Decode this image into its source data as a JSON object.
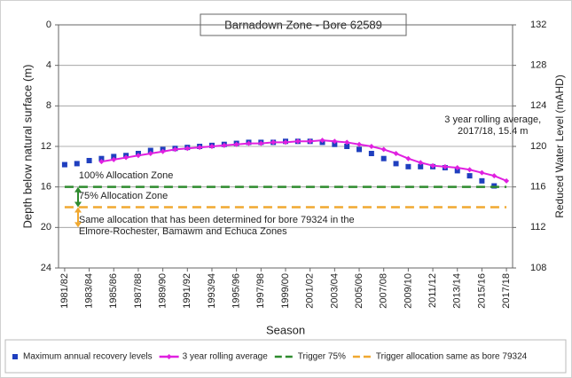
{
  "chart_data": {
    "type": "line",
    "title": "Barnadown Zone  - Bore 62589",
    "x_label": "Season",
    "y_label": "Depth below natural surface (m)",
    "y2_label": "Reduced Water Level (mAHD)",
    "categories": [
      "1981/82",
      null,
      "1983/84",
      null,
      "1985/86",
      null,
      "1987/88",
      null,
      "1989/90",
      null,
      "1991/92",
      null,
      "1993/94",
      null,
      "1995/96",
      null,
      "1997/98",
      null,
      "1999/00",
      null,
      "2001/02",
      null,
      "2003/04",
      null,
      "2005/06",
      null,
      "2007/08",
      null,
      "2009/10",
      null,
      "2011/12",
      null,
      "2013/14",
      null,
      "2015/16",
      null,
      "2017/18"
    ],
    "ylim": [
      0,
      24
    ],
    "y_inverted": true,
    "yticks": [
      0,
      4,
      8,
      12,
      16,
      20,
      24
    ],
    "y2lim": [
      108,
      132
    ],
    "y2ticks": [
      132,
      128,
      124,
      120,
      116,
      112,
      108
    ],
    "grid": true,
    "legend": "bottom",
    "series": [
      {
        "name": "Maximum annual recovery levels",
        "color": "#1f3fbf",
        "style": "markers",
        "values": [
          13.8,
          13.7,
          13.4,
          13.2,
          13.0,
          12.9,
          12.7,
          12.4,
          12.3,
          12.2,
          12.1,
          12.0,
          11.9,
          11.8,
          11.7,
          11.6,
          11.6,
          11.6,
          11.5,
          11.5,
          11.5,
          11.6,
          11.8,
          12.0,
          12.3,
          12.7,
          13.2,
          13.7,
          14.0,
          14.0,
          14.0,
          14.1,
          14.4,
          14.9,
          15.4,
          15.9,
          null
        ]
      },
      {
        "name": "3 year rolling average",
        "color": "#e020e0",
        "style": "line-markers",
        "values": [
          null,
          null,
          null,
          13.5,
          13.3,
          13.1,
          12.9,
          12.7,
          12.5,
          12.3,
          12.2,
          12.1,
          12.0,
          11.9,
          11.8,
          11.7,
          11.7,
          11.6,
          11.6,
          11.5,
          11.5,
          11.4,
          11.5,
          11.6,
          11.8,
          12.0,
          12.3,
          12.7,
          13.2,
          13.6,
          13.9,
          14.0,
          14.1,
          14.3,
          14.6,
          14.9,
          15.4
        ]
      },
      {
        "name": "Trigger 75%",
        "color": "#2e8b2e",
        "style": "dashed",
        "values": [
          16,
          16,
          16,
          16,
          16,
          16,
          16,
          16,
          16,
          16,
          16,
          16,
          16,
          16,
          16,
          16,
          16,
          16,
          16,
          16,
          16,
          16,
          16,
          16,
          16,
          16,
          16,
          16,
          16,
          16,
          16,
          16,
          16,
          16,
          16,
          16,
          16
        ]
      },
      {
        "name": "Trigger allocation same as bore 79324",
        "color": "#f0a830",
        "style": "dashed",
        "values": [
          18,
          18,
          18,
          18,
          18,
          18,
          18,
          18,
          18,
          18,
          18,
          18,
          18,
          18,
          18,
          18,
          18,
          18,
          18,
          18,
          18,
          18,
          18,
          18,
          18,
          18,
          18,
          18,
          18,
          18,
          18,
          18,
          18,
          18,
          18,
          18,
          18
        ]
      }
    ],
    "annotations": [
      {
        "lines": [
          "3 year rolling average,",
          "2017/18, 15.4 m"
        ],
        "x": "2013/14",
        "y": 9.4
      },
      {
        "lines": [
          "100% Allocation Zone"
        ],
        "x": "1981/82",
        "y": 14.9
      },
      {
        "lines": [
          "75% Allocation Zone"
        ],
        "x": "1981/82",
        "y": 16.9
      },
      {
        "lines": [
          "Same allocation that has been determined for bore 79324 in the",
          "Elmore-Rochester, Bamawm and Echuca Zones"
        ],
        "x": "1981/82",
        "y": 19.3
      }
    ]
  }
}
